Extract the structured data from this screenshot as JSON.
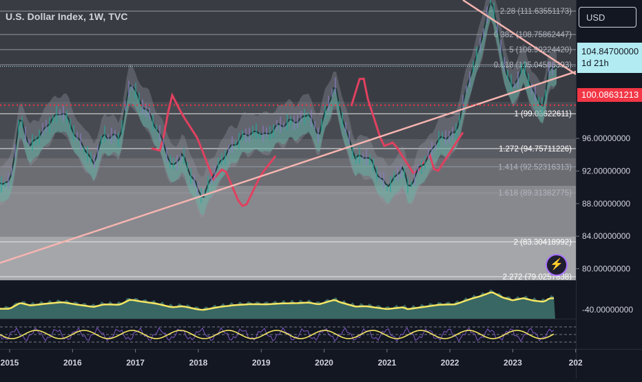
{
  "header": {
    "title": "U.S. Dollar Index, 1W, TVC"
  },
  "currency_button": {
    "label": "USD"
  },
  "price_tag": {
    "price": "104.84700000",
    "countdown": "1d 21h",
    "color": "#b2ebf2"
  },
  "level_tag": {
    "price": "100.08631213",
    "color": "#f23645"
  },
  "alert_icon": {
    "icon": "lightning-bolt-icon"
  },
  "chart_data": [
    {
      "type": "line",
      "title": "U.S. Dollar Index, 1W, TVC",
      "y_axis_labels": [
        "96.00000000",
        "92.00000000",
        "88.00000000",
        "84.00000000",
        "80.00000000"
      ],
      "y_axis_values": [
        96,
        92,
        88,
        84,
        80
      ],
      "x_axis_labels": [
        "2015",
        "2016",
        "2017",
        "2018",
        "2019",
        "2020",
        "2021",
        "2022",
        "2023",
        "202"
      ],
      "ylim": [
        78.6,
        113
      ],
      "grid": true,
      "series": [
        {
          "values": [
            {
              "x": "2015-01",
              "y": 90.5
            },
            {
              "x": "2015-03",
              "y": 98.5
            },
            {
              "x": "2015-05",
              "y": 95.0
            },
            {
              "x": "2015-08",
              "y": 97.5
            },
            {
              "x": "2015-11",
              "y": 99.5
            },
            {
              "x": "2016-02",
              "y": 96.0
            },
            {
              "x": "2016-05",
              "y": 93.0
            },
            {
              "x": "2016-07",
              "y": 96.5
            },
            {
              "x": "2016-10",
              "y": 96.0
            },
            {
              "x": "2016-12",
              "y": 103.0
            },
            {
              "x": "2017-02",
              "y": 100.5
            },
            {
              "x": "2017-05",
              "y": 97.5
            },
            {
              "x": "2017-08",
              "y": 92.5
            },
            {
              "x": "2017-10",
              "y": 94.0
            },
            {
              "x": "2018-01",
              "y": 89.5
            },
            {
              "x": "2018-02",
              "y": 89.0
            },
            {
              "x": "2018-05",
              "y": 93.0
            },
            {
              "x": "2018-08",
              "y": 95.5
            },
            {
              "x": "2018-11",
              "y": 96.8
            },
            {
              "x": "2019-02",
              "y": 96.5
            },
            {
              "x": "2019-05",
              "y": 97.8
            },
            {
              "x": "2019-08",
              "y": 98.2
            },
            {
              "x": "2019-10",
              "y": 99.0
            },
            {
              "x": "2019-12",
              "y": 96.5
            },
            {
              "x": "2020-03",
              "y": 102.8
            },
            {
              "x": "2020-04",
              "y": 99.5
            },
            {
              "x": "2020-07",
              "y": 93.5
            },
            {
              "x": "2020-09",
              "y": 94.0
            },
            {
              "x": "2021-01",
              "y": 90.0
            },
            {
              "x": "2021-04",
              "y": 92.5
            },
            {
              "x": "2021-05",
              "y": 90.0
            },
            {
              "x": "2021-08",
              "y": 93.0
            },
            {
              "x": "2021-11",
              "y": 96.0
            },
            {
              "x": "2022-02",
              "y": 96.5
            },
            {
              "x": "2022-05",
              "y": 104.0
            },
            {
              "x": "2022-07",
              "y": 108.0
            },
            {
              "x": "2022-09",
              "y": 113.5
            },
            {
              "x": "2022-11",
              "y": 106.0
            },
            {
              "x": "2023-01",
              "y": 102.0
            },
            {
              "x": "2023-03",
              "y": 105.0
            },
            {
              "x": "2023-05",
              "y": 101.5
            },
            {
              "x": "2023-07",
              "y": 100.0
            },
            {
              "x": "2023-08",
              "y": 104.85
            }
          ]
        }
      ],
      "fib_levels": [
        {
          "label": "1 (99.03622611)",
          "value": 99.03622611
        },
        {
          "label": "1.272 (94.75711226)",
          "value": 94.75711226
        },
        {
          "label": "1.414 (92.52316313)",
          "value": 92.52316313
        },
        {
          "label": "1.618 (89.31382775)",
          "value": 89.31382775
        },
        {
          "label": "2 (83.30418992)",
          "value": 83.30418992
        },
        {
          "label": "2.272 (79.0257838)",
          "value": 79.0257838
        },
        {
          "label": "0.382 (108.75862447)",
          "value": 108.75862447
        },
        {
          "label": "5 (106.90224420)",
          "value": 106.9022442
        },
        {
          "label": "0.618 (105.04586393)",
          "value": 105.04586393
        },
        {
          "label": "2.28 (111.63551173)",
          "value": 111.63551173
        }
      ]
    },
    {
      "type": "line",
      "y_axis_labels": [
        "-40.00000000"
      ]
    }
  ]
}
